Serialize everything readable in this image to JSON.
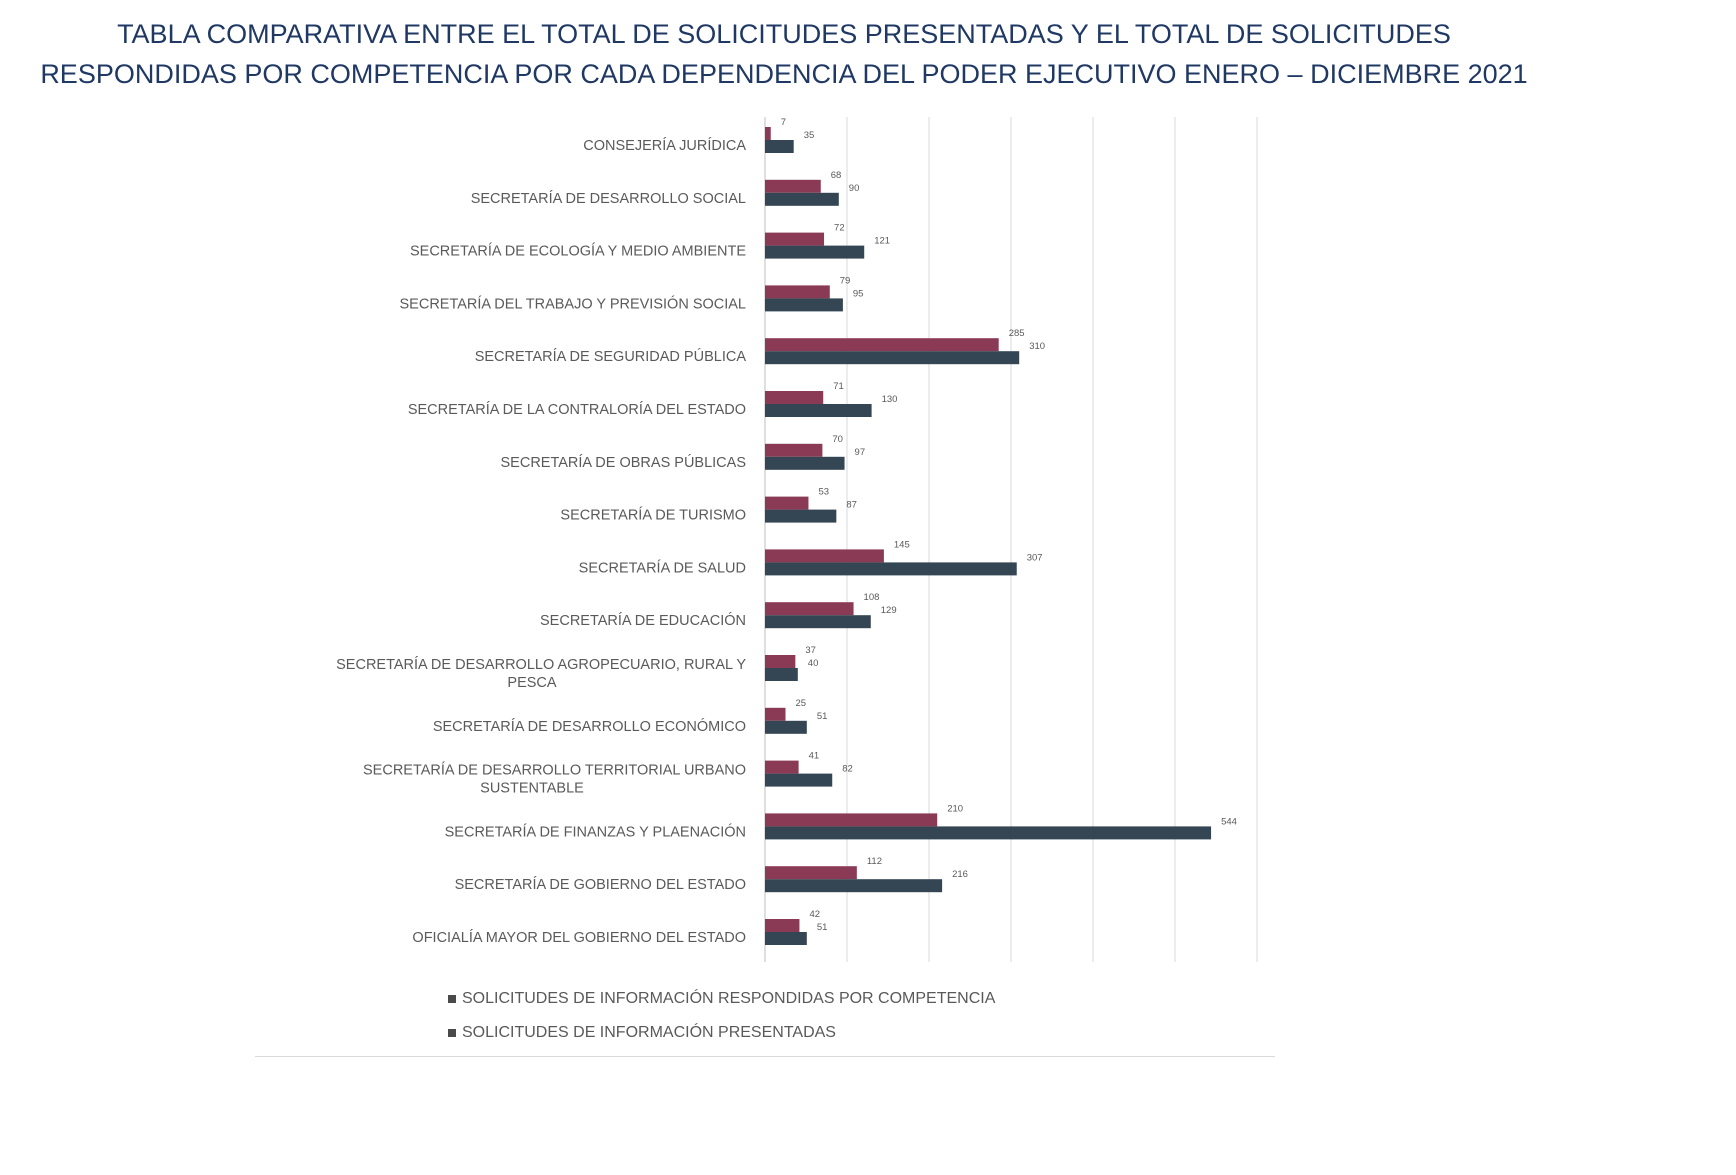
{
  "chart_data": {
    "type": "bar",
    "orientation": "horizontal",
    "title": "TABLA COMPARATIVA ENTRE EL TOTAL DE SOLICITUDES PRESENTADAS Y EL TOTAL DE SOLICITUDES RESPONDIDAS POR COMPETENCIA POR CADA DEPENDENCIA DEL PODER EJECUTIVO ENERO – DICIEMBRE 2021",
    "title_lines": [
      "TABLA COMPARATIVA ENTRE EL TOTAL DE SOLICITUDES PRESENTADAS Y EL TOTAL DE SOLICITUDES",
      "RESPONDIDAS POR COMPETENCIA POR CADA DEPENDENCIA DEL PODER EJECUTIVO ENERO – DICIEMBRE 2021"
    ],
    "categories": [
      [
        "CONSEJERÍA JURÍDICA"
      ],
      [
        "SECRETARÍA DE DESARROLLO SOCIAL"
      ],
      [
        "SECRETARÍA DE ECOLOGÍA Y MEDIO AMBIENTE"
      ],
      [
        "SECRETARÍA DEL TRABAJO  Y PREVISIÓN SOCIAL"
      ],
      [
        "SECRETARÍA DE SEGURIDAD PÚBLICA"
      ],
      [
        "SECRETARÍA DE LA CONTRALORÍA DEL ESTADO"
      ],
      [
        "SECRETARÍA DE OBRAS PÚBLICAS"
      ],
      [
        "SECRETARÍA DE TURISMO"
      ],
      [
        "SECRETARÍA DE SALUD"
      ],
      [
        "SECRETARÍA DE EDUCACIÓN"
      ],
      [
        "SECRETARÍA DE DESARROLLO AGROPECUARIO, RURAL Y",
        "PESCA"
      ],
      [
        "SECRETARÍA DE DESARROLLO ECONÓMICO"
      ],
      [
        "SECRETARÍA DE DESARROLLO TERRITORIAL URBANO",
        "SUSTENTABLE"
      ],
      [
        "SECRETARÍA DE FINANZAS Y PLAENACIÓN"
      ],
      [
        "SECRETARÍA DE GOBIERNO DEL ESTADO"
      ],
      [
        "OFICIALÍA MAYOR DEL GOBIERNO DEL ESTADO"
      ]
    ],
    "series": [
      {
        "name": "SOLICITUDES DE INFORMACIÓN RESPONDIDAS POR COMPETENCIA",
        "color": "#8b3a55",
        "values": [
          7,
          68,
          72,
          79,
          285,
          71,
          70,
          53,
          145,
          108,
          37,
          25,
          41,
          210,
          112,
          42
        ]
      },
      {
        "name": "SOLICITUDES DE INFORMACIÓN  PRESENTADAS",
        "color": "#344654",
        "values": [
          35,
          90,
          121,
          95,
          310,
          130,
          97,
          87,
          307,
          129,
          40,
          51,
          82,
          544,
          216,
          51
        ]
      }
    ],
    "xlim": [
      0,
      600
    ],
    "grid": true,
    "legend_position": "bottom"
  }
}
